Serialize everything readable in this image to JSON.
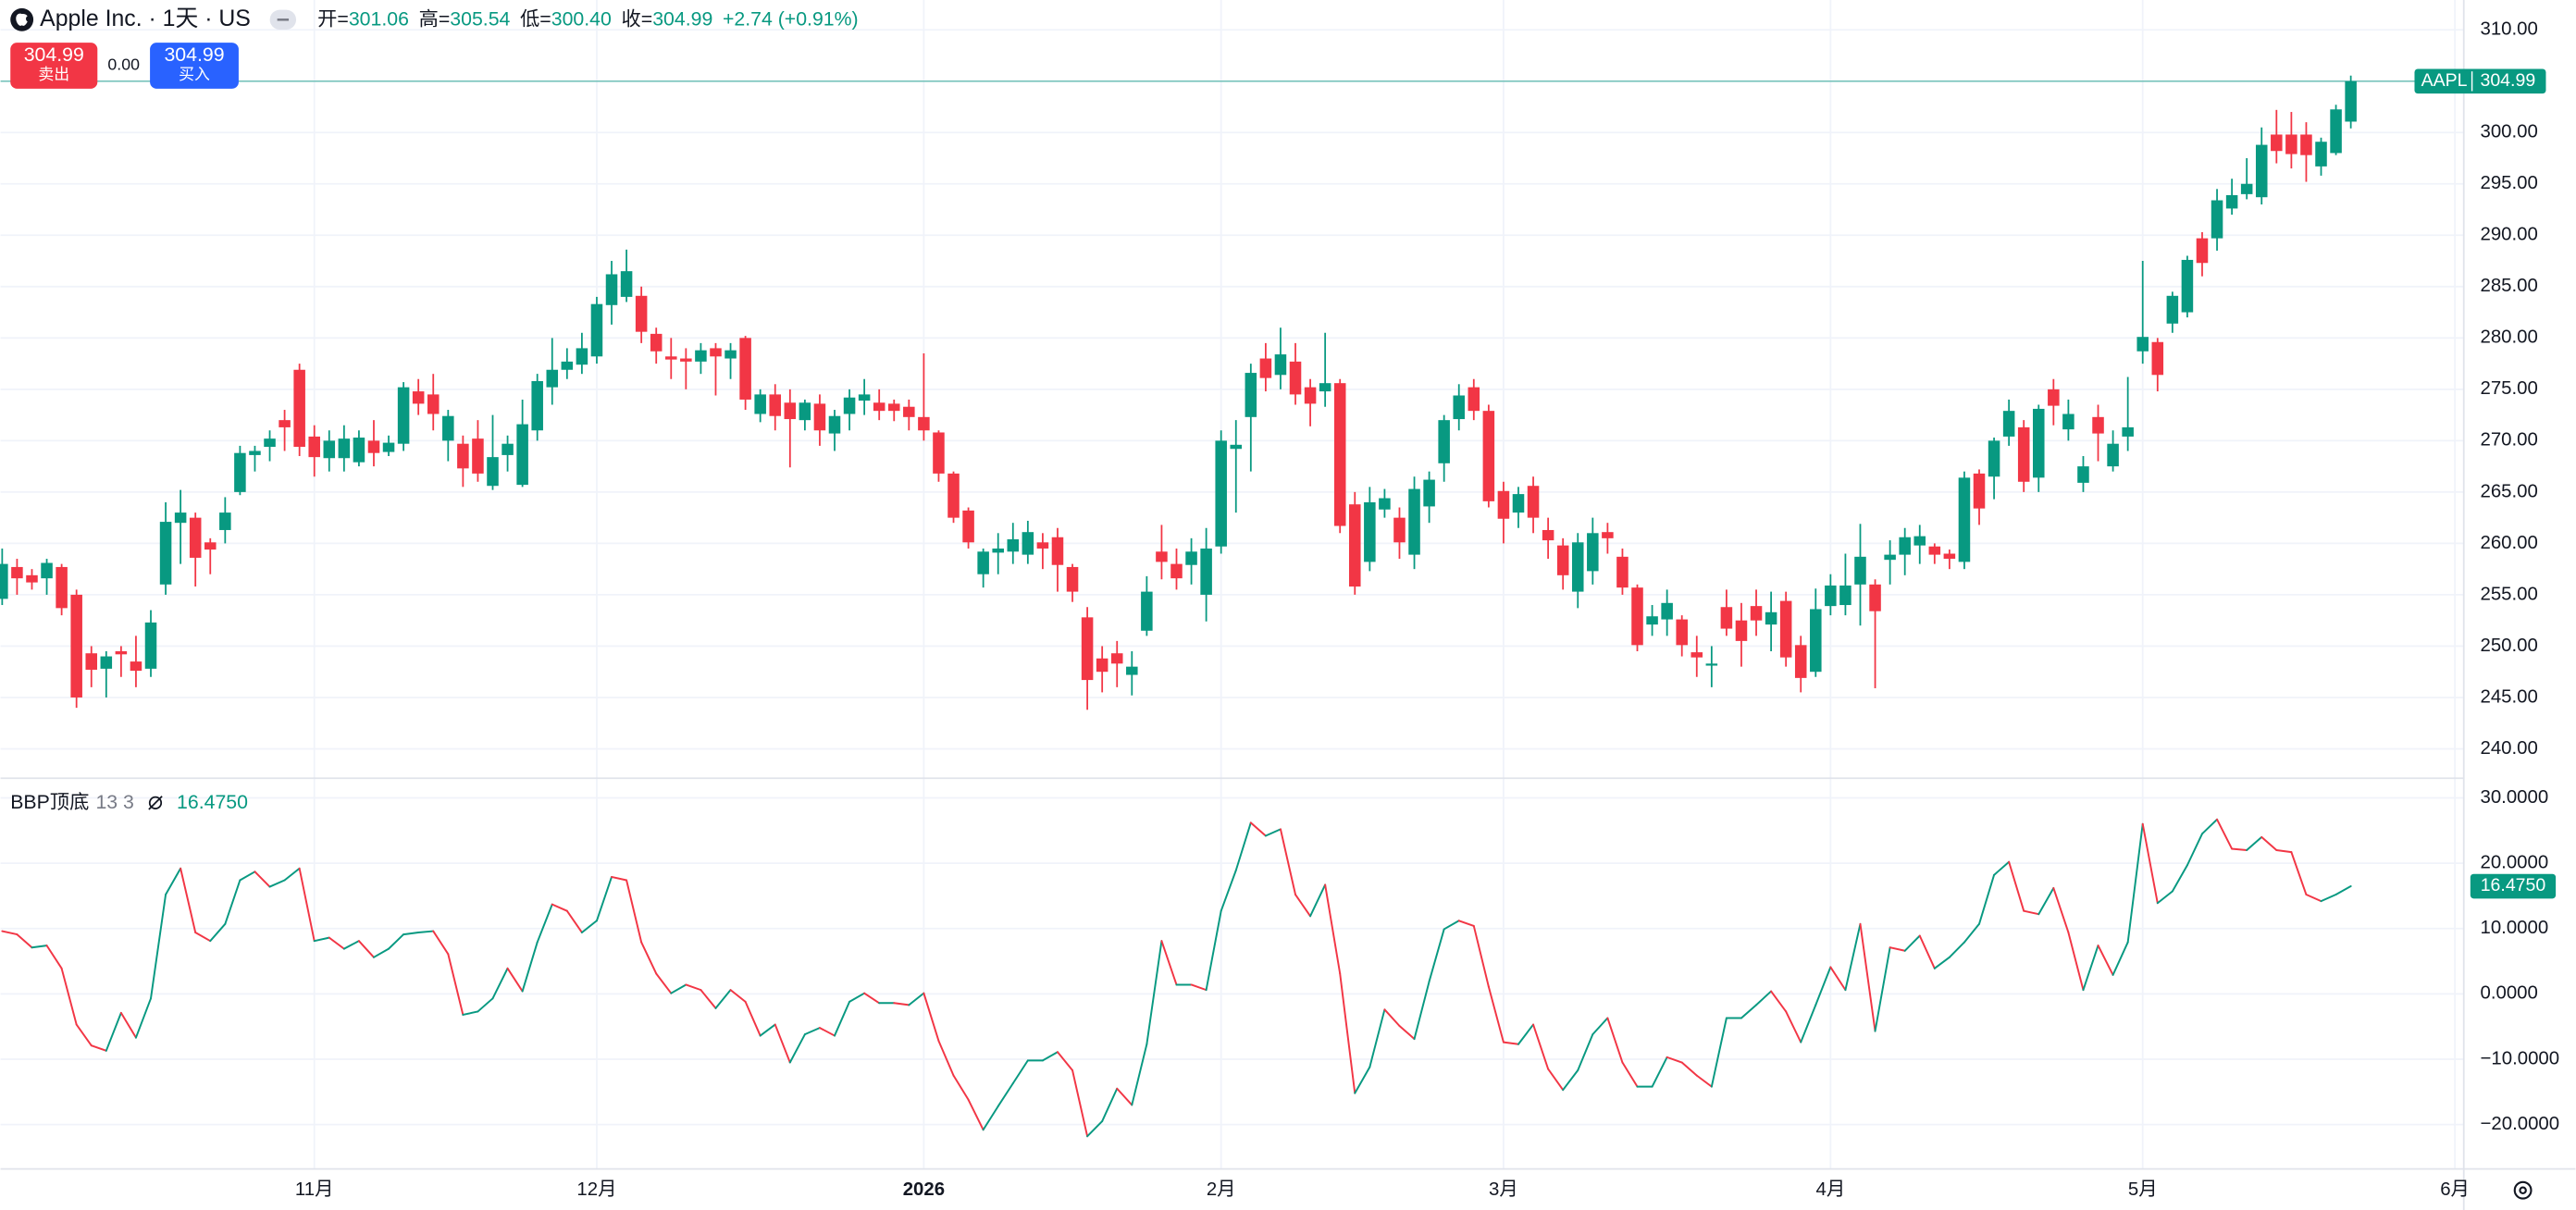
{
  "header": {
    "symbol": "Apple Inc. · 1天 · US",
    "ohlc": [
      {
        "label": "开=",
        "value": "301.06"
      },
      {
        "label": "高=",
        "value": "305.54"
      },
      {
        "label": "低=",
        "value": "300.40"
      },
      {
        "label": "收=",
        "value": "304.99"
      }
    ],
    "change": "+2.74 (+0.91%)",
    "sell": {
      "price": "304.99",
      "label": "卖出"
    },
    "spread": "0.00",
    "buy": {
      "price": "304.99",
      "label": "买入"
    }
  },
  "chart_data": [
    {
      "type": "candlestick",
      "name": "AAPL",
      "up_color": "#089981",
      "down_color": "#f23645",
      "open": [
        254.6,
        257.7,
        256.9,
        256.6,
        257.7,
        255,
        249.3,
        247.8,
        249.5,
        248.5,
        247.8,
        256,
        262,
        262.5,
        260.1,
        261.3,
        265,
        268.6,
        269.4,
        272,
        276.9,
        270.4,
        268.3,
        268.3,
        267.9,
        270,
        268.9,
        269.7,
        274.8,
        274.5,
        270,
        269.7,
        270.2,
        265.6,
        268.6,
        265.7,
        271,
        275.2,
        276.9,
        277.4,
        278.2,
        283.2,
        284,
        284.1,
        280.4,
        278.2,
        278,
        277.7,
        279,
        278,
        280,
        272.6,
        274.5,
        273.7,
        272,
        273.6,
        270.7,
        272.6,
        273.9,
        273.7,
        273.6,
        273.3,
        272.3,
        270.8,
        266.8,
        263.2,
        257,
        259.1,
        259.2,
        258.9,
        260.1,
        260.6,
        257.7,
        252.8,
        248.8,
        249.3,
        247.2,
        251.5,
        259.2,
        258,
        257.9,
        255,
        259.7,
        269.2,
        272.3,
        278,
        276.4,
        277.7,
        275.2,
        274.8,
        275.6,
        263.8,
        258.2,
        263.3,
        262.5,
        258.9,
        263.6,
        267.8,
        272.1,
        275.2,
        272.9,
        265.1,
        263,
        265.6,
        261.3,
        259.8,
        255.3,
        257.3,
        261.1,
        258.7,
        255.7,
        252.1,
        252.6,
        252.6,
        249.4,
        248.1,
        253.8,
        252.5,
        253.9,
        252.1,
        254.4,
        250.1,
        247.5,
        253.9,
        254,
        256,
        256,
        258.4,
        258.9,
        259.8,
        259.7,
        259,
        258.2,
        266.8,
        266.5,
        270.4,
        271.3,
        266.4,
        275,
        271.1,
        265.9,
        272.3,
        267.5,
        270.4,
        278.7,
        279.6,
        281.4,
        282.5,
        289.7,
        289.7,
        292.6,
        294,
        293.7,
        299.8,
        299.8,
        299.8,
        296.7,
        298,
        301.06
      ],
      "high": [
        259.5,
        258.5,
        257.5,
        258.5,
        258,
        255.5,
        250,
        249.5,
        250,
        251,
        253.5,
        264,
        265.2,
        263,
        260.5,
        264.5,
        269.5,
        269.5,
        271,
        273,
        277.5,
        271.5,
        271,
        271.5,
        271,
        272,
        270.5,
        275.7,
        276,
        276.5,
        273,
        270.5,
        272,
        272.5,
        270.5,
        274,
        276.5,
        280,
        279,
        280.5,
        284,
        287.5,
        288.6,
        285,
        281,
        280,
        279,
        279.5,
        279.5,
        279.5,
        280.2,
        275,
        275.5,
        275,
        274,
        274.5,
        273,
        275,
        276,
        275,
        274,
        274,
        278.5,
        271,
        267,
        263.5,
        259.5,
        261,
        262,
        262.2,
        261,
        261.5,
        258,
        253.8,
        250,
        250.5,
        249.5,
        256.8,
        261.8,
        259.5,
        260.5,
        261.5,
        271,
        272,
        277.5,
        279.5,
        281,
        279.5,
        276,
        280.5,
        276,
        265,
        265.5,
        265.3,
        263.5,
        266.5,
        267,
        272.5,
        275.5,
        276,
        273.5,
        266,
        265.5,
        266.5,
        262.5,
        260.5,
        261,
        262.5,
        262,
        259.5,
        256,
        254,
        255.5,
        253,
        251,
        250,
        255.5,
        254.2,
        255.5,
        255.3,
        255.3,
        251,
        255.6,
        257,
        259,
        261.9,
        256.5,
        260.3,
        261.5,
        261.8,
        260,
        259.4,
        267,
        267.2,
        270.3,
        274,
        272,
        273.5,
        276,
        274,
        268.5,
        273.5,
        271,
        276.2,
        287.5,
        280,
        284.5,
        288,
        290.3,
        294.5,
        295.5,
        297.5,
        300.5,
        302.2,
        302,
        301,
        299.5,
        302.7,
        305.54
      ],
      "low": [
        254,
        255,
        255.5,
        255,
        253,
        244,
        246,
        245,
        247,
        246,
        247,
        255,
        258,
        255.8,
        257,
        260,
        264.7,
        267,
        268,
        269,
        268.5,
        266.5,
        267,
        267,
        267.5,
        267.5,
        268.5,
        269,
        272.5,
        271,
        268,
        265.5,
        266,
        265.2,
        267,
        265.5,
        270,
        273.5,
        276,
        276.5,
        277.5,
        281.3,
        283.5,
        279.5,
        277.5,
        276,
        275,
        276.5,
        274.4,
        276,
        273,
        271.8,
        271,
        267.4,
        271,
        269.5,
        269,
        271,
        272.5,
        272,
        271.9,
        271,
        270,
        266,
        262,
        259.5,
        255.7,
        257,
        258,
        258,
        257.5,
        255.3,
        254.3,
        243.8,
        245.5,
        246,
        245.2,
        251,
        256.5,
        255.5,
        256,
        252.4,
        259,
        263,
        267,
        274.8,
        275,
        273.5,
        271.4,
        273.3,
        261,
        255,
        257.3,
        262.5,
        258.5,
        257.5,
        262,
        266,
        271,
        272,
        263.5,
        260,
        261.5,
        261,
        258.5,
        255.5,
        253.7,
        256,
        259,
        255,
        249.5,
        251,
        251,
        249,
        247,
        246,
        251,
        248,
        251,
        249.5,
        248,
        245.5,
        247,
        253,
        253,
        252,
        245.9,
        256,
        256.9,
        258,
        258,
        257.5,
        257.5,
        261.8,
        264.3,
        269.5,
        265,
        265,
        271.5,
        270,
        265,
        268,
        267,
        269,
        277.5,
        274.8,
        280.5,
        282,
        286,
        288.5,
        292,
        293.5,
        293,
        297,
        296.5,
        295.2,
        295.8,
        297.8,
        300.4
      ],
      "close": [
        258,
        256.6,
        256.2,
        258.1,
        253.7,
        245,
        247.7,
        249,
        249.2,
        247.6,
        252.3,
        262.1,
        263,
        258.6,
        259.4,
        263,
        268.8,
        269,
        270.2,
        271.3,
        269.4,
        268.4,
        270,
        270.2,
        270.3,
        268.8,
        269.8,
        275.2,
        273.6,
        272.6,
        272.4,
        267.3,
        266.8,
        268.4,
        269.7,
        271.6,
        275.8,
        276.9,
        277.7,
        279,
        283.3,
        286.2,
        286.5,
        280.6,
        278.7,
        277.9,
        277.7,
        278.8,
        278.2,
        278.8,
        274,
        274.5,
        272.4,
        272.1,
        273.7,
        271,
        272.4,
        274.2,
        274.5,
        272.9,
        272.9,
        272.3,
        271,
        266.8,
        262.5,
        260.1,
        259.2,
        259.5,
        260.4,
        261.1,
        259.5,
        257.9,
        255.3,
        246.7,
        247.5,
        248.3,
        248,
        255.3,
        258.2,
        256.6,
        259.2,
        259.5,
        270,
        269.6,
        276.6,
        276.1,
        278.4,
        274.5,
        273.6,
        275.6,
        261.7,
        255.8,
        264,
        264.4,
        260.1,
        265.3,
        266.2,
        272,
        274.4,
        272.9,
        264.1,
        262.4,
        264.8,
        262.5,
        260.3,
        256.9,
        260.1,
        261,
        260.5,
        255.7,
        250.1,
        252.9,
        254.2,
        250.1,
        248.9,
        248.3,
        251.7,
        250.5,
        252.5,
        253.3,
        248.9,
        246.9,
        253.6,
        255.9,
        255.9,
        258.7,
        253.4,
        258.9,
        260.6,
        260.7,
        258.9,
        258.5,
        266.4,
        263.4,
        270,
        272.9,
        266,
        273.1,
        273.4,
        272.6,
        267.5,
        270.7,
        269.7,
        271.3,
        280.1,
        276.4,
        284.1,
        287.6,
        287.3,
        293.4,
        293.9,
        295,
        298.8,
        298.2,
        297.9,
        297.8,
        299.1,
        302.25,
        304.99
      ],
      "xlim": [
        -0.11,
        165.6
      ],
      "xticks": [
        {
          "value": 21,
          "label": "11月"
        },
        {
          "value": 40,
          "label": "12月"
        },
        {
          "value": 62,
          "label": "2026"
        },
        {
          "value": 82,
          "label": "2月"
        },
        {
          "value": 101,
          "label": "3月"
        },
        {
          "value": 123,
          "label": "4月"
        },
        {
          "value": 144,
          "label": "5月"
        },
        {
          "value": 165,
          "label": "6月"
        }
      ],
      "ylim": [
        237.3,
        312.9
      ],
      "yticks": [
        {
          "value": 240,
          "label": "240.00"
        },
        {
          "value": 245,
          "label": "245.00"
        },
        {
          "value": 250,
          "label": "250.00"
        },
        {
          "value": 255,
          "label": "255.00"
        },
        {
          "value": 260,
          "label": "260.00"
        },
        {
          "value": 265,
          "label": "265.00"
        },
        {
          "value": 270,
          "label": "270.00"
        },
        {
          "value": 275,
          "label": "275.00"
        },
        {
          "value": 280,
          "label": "280.00"
        },
        {
          "value": 285,
          "label": "285.00"
        },
        {
          "value": 290,
          "label": "290.00"
        },
        {
          "value": 295,
          "label": "295.00"
        },
        {
          "value": 300,
          "label": "300.00"
        },
        {
          "value": 305,
          "label": "305.00"
        },
        {
          "value": 310,
          "label": "310.00"
        }
      ],
      "grid": true
    },
    {
      "type": "line",
      "title": "BBP顶底",
      "params": "13 3",
      "up_color": "#089981",
      "down_color": "#f23645",
      "values": [
        9.6,
        9.1,
        7.1,
        7.4,
        3.9,
        -4.7,
        -7.9,
        -8.7,
        -2.9,
        -6.7,
        -0.7,
        15.2,
        19.2,
        9.4,
        8.1,
        10.7,
        17.4,
        18.7,
        16.4,
        17.4,
        19.2,
        8.1,
        8.6,
        6.9,
        8.1,
        5.6,
        6.9,
        9.1,
        9.4,
        9.6,
        6.1,
        -3.2,
        -2.7,
        -0.7,
        3.9,
        0.4,
        7.9,
        13.7,
        12.7,
        9.4,
        11.2,
        17.9,
        17.4,
        7.9,
        3.1,
        0.1,
        1.4,
        0.6,
        -2.2,
        0.6,
        -1.2,
        -6.4,
        -4.7,
        -10.5,
        -6.2,
        -5.2,
        -6.4,
        -1.2,
        0.1,
        -1.4,
        -1.4,
        -1.7,
        0.1,
        -7.2,
        -12.5,
        -16.2,
        -20.8,
        -17.2,
        -13.7,
        -10.2,
        -10.2,
        -8.9,
        -11.7,
        -21.8,
        -19.5,
        -14.5,
        -17,
        -7.7,
        8.1,
        1.4,
        1.4,
        0.6,
        12.7,
        18.9,
        26.2,
        24.2,
        25.2,
        15.2,
        11.9,
        16.7,
        3.1,
        -15.2,
        -11.2,
        -2.4,
        -4.9,
        -6.9,
        1.9,
        9.9,
        11.2,
        10.4,
        1.1,
        -7.4,
        -7.7,
        -4.7,
        -11.5,
        -14.7,
        -11.7,
        -6.2,
        -3.7,
        -10.5,
        -14.2,
        -14.2,
        -9.7,
        -10.5,
        -12.5,
        -14.2,
        -3.7,
        -3.7,
        -1.7,
        0.4,
        -2.7,
        -7.4,
        -1.7,
        4.1,
        0.6,
        10.7,
        -5.7,
        7.1,
        6.6,
        8.9,
        3.9,
        5.6,
        7.9,
        10.7,
        18.2,
        20.2,
        12.7,
        12.2,
        16.2,
        9.4,
        0.6,
        7.4,
        2.9,
        7.9,
        26,
        13.9,
        15.7,
        19.7,
        24.5,
        26.7,
        22.2,
        22,
        24,
        22,
        21.7,
        15.2,
        14.2,
        15.2,
        16.475
      ],
      "last_label": "16.4750",
      "ylim": [
        -26.8,
        32.76
      ],
      "yticks": [
        {
          "value": 30,
          "label": "30.0000"
        },
        {
          "value": 20,
          "label": "20.0000"
        },
        {
          "value": 10,
          "label": "10.0000"
        },
        {
          "value": 0,
          "label": "0.0000"
        },
        {
          "value": -10,
          "label": "−10.0000"
        },
        {
          "value": -20,
          "label": "−20.0000"
        }
      ],
      "grid": true
    }
  ]
}
